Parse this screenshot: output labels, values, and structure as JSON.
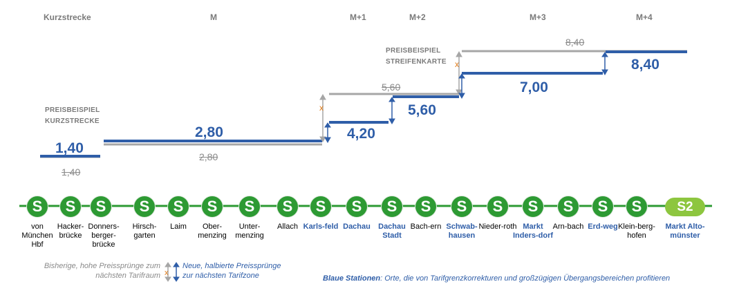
{
  "zones": [
    {
      "id": "kurz",
      "label": "Kurzstrecke"
    },
    {
      "id": "m",
      "label": "M"
    },
    {
      "id": "m1",
      "label": "M+1"
    },
    {
      "id": "m2",
      "label": "M+2"
    },
    {
      "id": "m3",
      "label": "M+3"
    },
    {
      "id": "m4",
      "label": "M+4"
    }
  ],
  "examples": {
    "kurzstrecke": "PREISBEISPIEL KURZSTRECKE",
    "streifenkarte": "PREISBEISPIEL STREIFENKARTE"
  },
  "prices_new": [
    "1,40",
    "2,80",
    "4,20",
    "5,60",
    "7,00",
    "8,40"
  ],
  "prices_old": [
    "1,40",
    "2,80",
    "5,60",
    "8,40"
  ],
  "stations": [
    {
      "name": "von München Hbf",
      "blue": false
    },
    {
      "name": "Hacker-brücke",
      "blue": false
    },
    {
      "name": "Donners-berger-brücke",
      "blue": false
    },
    {
      "name": "Hirsch-garten",
      "blue": false
    },
    {
      "name": "Laim",
      "blue": false
    },
    {
      "name": "Ober-menzing",
      "blue": false
    },
    {
      "name": "Unter-menzing",
      "blue": false
    },
    {
      "name": "Allach",
      "blue": false
    },
    {
      "name": "Karls-feld",
      "blue": true
    },
    {
      "name": "Dachau",
      "blue": true
    },
    {
      "name": "Dachau Stadt",
      "blue": true
    },
    {
      "name": "Bach-ern",
      "blue": false
    },
    {
      "name": "Schwab-hausen",
      "blue": true
    },
    {
      "name": "Nieder-roth",
      "blue": false
    },
    {
      "name": "Markt Inders-dorf",
      "blue": true
    },
    {
      "name": "Arn-bach",
      "blue": false
    },
    {
      "name": "Erd-weg",
      "blue": true
    },
    {
      "name": "Klein-berg-hofen",
      "blue": false
    },
    {
      "name": "Markt Alto-münster",
      "blue": true
    }
  ],
  "station_icon": "S",
  "line_badge": "S2",
  "legend": {
    "old": "Bisherige, hohe Preissprünge zum nächsten Tarifraum",
    "new": "Neue, halbierte Preissprünge zur nächsten Tarifzone",
    "stations_bold": "Blaue Stationen",
    "stations_rest": ": Orte, die von Tarifgrenzkorrekturen und großzügigen Übergangsbereichen profitieren"
  },
  "colors": {
    "new": "#2f5ea8",
    "old": "#a6a6a6",
    "s_bahn": "#2d9a33",
    "s2": "#8dc63f",
    "marker": "#e07b18"
  }
}
